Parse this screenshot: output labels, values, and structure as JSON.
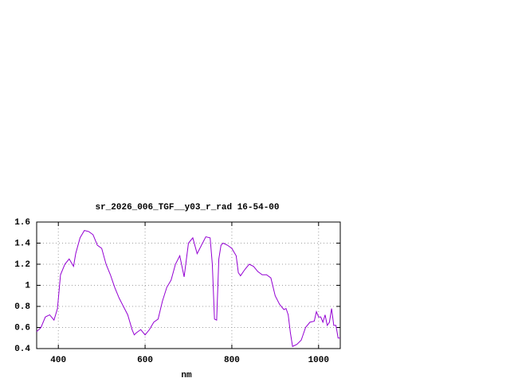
{
  "chart_data": {
    "type": "line",
    "title": "sr_2026_006_TGF__y03_r_rad 16-54-00",
    "xlabel": "nm",
    "x": [
      350,
      360,
      370,
      380,
      390,
      398,
      405,
      415,
      425,
      435,
      440,
      450,
      460,
      470,
      480,
      490,
      500,
      510,
      520,
      530,
      540,
      550,
      560,
      570,
      575,
      580,
      590,
      600,
      610,
      620,
      630,
      640,
      650,
      660,
      670,
      680,
      690,
      700,
      710,
      720,
      730,
      740,
      750,
      755,
      760,
      765,
      770,
      775,
      780,
      790,
      800,
      810,
      815,
      820,
      830,
      840,
      850,
      860,
      870,
      880,
      890,
      900,
      910,
      920,
      925,
      930,
      935,
      940,
      950,
      960,
      970,
      980,
      990,
      995,
      1000,
      1005,
      1010,
      1015,
      1020,
      1025,
      1030,
      1035,
      1040,
      1045,
      1050
    ],
    "series": [
      {
        "name": "sr_2026_006_TGF__y03_r_rad 16-54-00",
        "color": "#9400d3",
        "values": [
          0.56,
          0.6,
          0.7,
          0.72,
          0.67,
          0.78,
          1.1,
          1.2,
          1.25,
          1.18,
          1.3,
          1.45,
          1.52,
          1.51,
          1.48,
          1.38,
          1.35,
          1.2,
          1.1,
          0.98,
          0.88,
          0.8,
          0.72,
          0.58,
          0.53,
          0.55,
          0.58,
          0.53,
          0.58,
          0.65,
          0.68,
          0.85,
          0.98,
          1.05,
          1.2,
          1.28,
          1.08,
          1.4,
          1.45,
          1.3,
          1.38,
          1.46,
          1.45,
          1.2,
          0.68,
          0.67,
          1.25,
          1.38,
          1.4,
          1.38,
          1.35,
          1.28,
          1.12,
          1.09,
          1.15,
          1.2,
          1.18,
          1.13,
          1.1,
          1.1,
          1.07,
          0.9,
          0.82,
          0.77,
          0.78,
          0.72,
          0.55,
          0.42,
          0.44,
          0.48,
          0.6,
          0.65,
          0.66,
          0.75,
          0.7,
          0.7,
          0.65,
          0.72,
          0.62,
          0.65,
          0.78,
          0.62,
          0.62,
          0.5,
          0.5
        ]
      }
    ],
    "xlim": [
      350,
      1050
    ],
    "xticks": [
      400,
      600,
      800,
      1000
    ],
    "ylim": [
      0.4,
      1.6
    ],
    "yticks": [
      0.4,
      0.6,
      0.8,
      1,
      1.2,
      1.4,
      1.6
    ],
    "grid": true
  }
}
